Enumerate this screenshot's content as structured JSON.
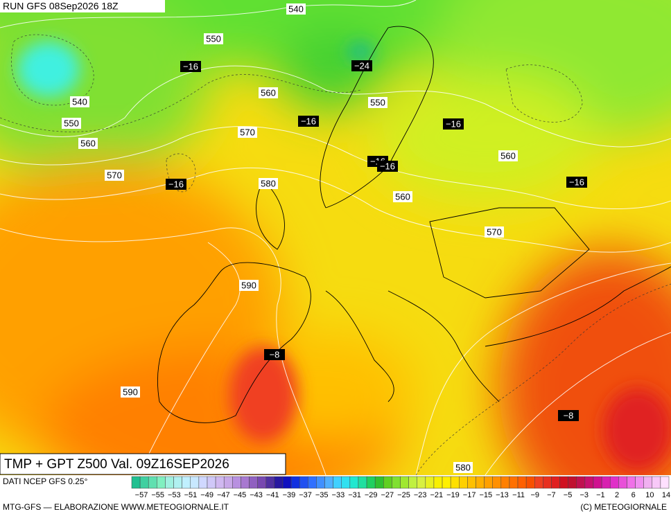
{
  "header": {
    "run": "RUN GFS 08Sep2026 18Z"
  },
  "map": {
    "contour_labels": [
      "540",
      "550",
      "540",
      "550",
      "560",
      "550",
      "570",
      "560",
      "570",
      "580",
      "560",
      "560",
      "570",
      "590",
      "590",
      "580"
    ],
    "temp_labels": [
      "−16",
      "−24",
      "−16",
      "−16",
      "−16",
      "−16",
      "−16",
      "−16",
      "−8",
      "−8"
    ]
  },
  "title": "TMP + GPT Z500 Val. 09Z16SEP2026",
  "legend": {
    "source": "DATI NCEP GFS 0.25°",
    "labels": [
      "−57",
      "−55",
      "−53",
      "−51",
      "−49",
      "−47",
      "−45",
      "−43",
      "−41",
      "−39",
      "−37",
      "−35",
      "−33",
      "−31",
      "−29",
      "−27",
      "−25",
      "−23",
      "−21",
      "−19",
      "−17",
      "−15",
      "−13",
      "−11",
      "−9",
      "−7",
      "−5",
      "−3",
      "−1",
      "2",
      "6",
      "10",
      "14"
    ],
    "colors": [
      "#20c090",
      "#40d0a0",
      "#60e0b0",
      "#80f0c0",
      "#a0f0e0",
      "#b0f0f0",
      "#c0f0ff",
      "#c8e8ff",
      "#d0d8ff",
      "#d0c8f8",
      "#d0b8f0",
      "#c8a8e8",
      "#b890e0",
      "#a878d0",
      "#9060c0",
      "#7848b0",
      "#5030a0",
      "#2818a0",
      "#1010c0",
      "#1030e0",
      "#2050f0",
      "#3070ff",
      "#4090ff",
      "#50b0ff",
      "#40d0ff",
      "#30e0f0",
      "#20e8d0",
      "#20e0a0",
      "#20d060",
      "#30c030",
      "#60d020",
      "#80e030",
      "#a0e830",
      "#c0f040",
      "#d8f040",
      "#e8f020",
      "#f8f000",
      "#fff000",
      "#ffe000",
      "#ffd000",
      "#ffc000",
      "#ffb000",
      "#ffa000",
      "#ff9000",
      "#ff8000",
      "#ff7000",
      "#ff6000",
      "#f85000",
      "#f04020",
      "#e83020",
      "#e02020",
      "#d01020",
      "#c01030",
      "#c01050",
      "#c81070",
      "#d01090",
      "#d820b0",
      "#e030c8",
      "#e850d8",
      "#f070e8",
      "#f090f0",
      "#f0b0f0",
      "#f8c8f8",
      "#ffe0ff"
    ]
  },
  "footer": {
    "left": "MTG-GFS — ELABORAZIONE WWW.METEOGIORNALE.IT",
    "right": "(C) METEOGIORNALE"
  }
}
